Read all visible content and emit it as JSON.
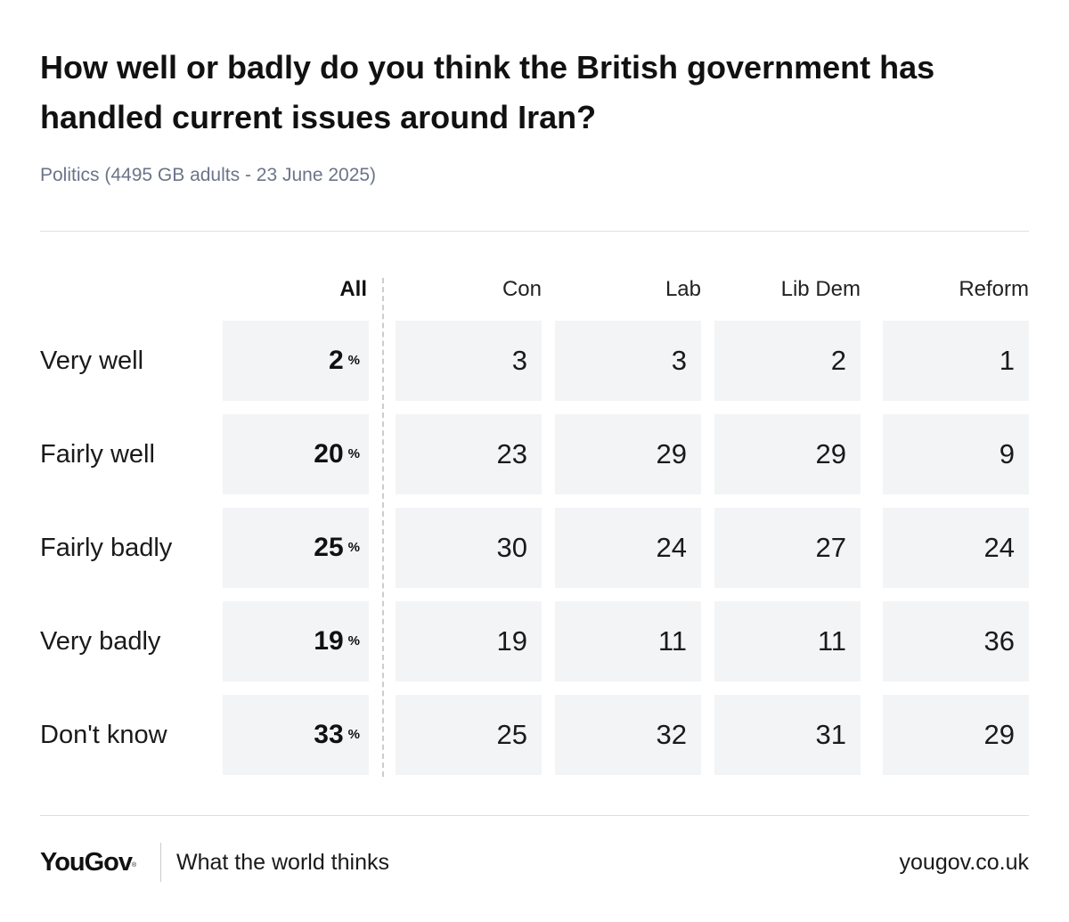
{
  "chart_data": {
    "type": "table",
    "title": "How well or badly do you think the British government has handled current issues around Iran?",
    "subtitle": "Politics (4495 GB adults - 23 June 2025)",
    "columns": [
      "All",
      "Con",
      "Lab",
      "Lib Dem",
      "Reform"
    ],
    "unit_symbol": "%",
    "rows": [
      {
        "label": "Very well",
        "values": [
          2,
          3,
          3,
          2,
          1
        ]
      },
      {
        "label": "Fairly well",
        "values": [
          20,
          23,
          29,
          29,
          9
        ]
      },
      {
        "label": "Fairly badly",
        "values": [
          25,
          30,
          24,
          27,
          24
        ]
      },
      {
        "label": "Very badly",
        "values": [
          19,
          19,
          11,
          11,
          36
        ]
      },
      {
        "label": "Don't know",
        "values": [
          33,
          25,
          32,
          31,
          29
        ]
      }
    ]
  },
  "footer": {
    "brand": "YouGov",
    "tagline": "What the world thinks",
    "site": "yougov.co.uk"
  },
  "colors": {
    "cell_bg": "#f3f4f6",
    "subtitle": "#6b7488",
    "rule": "#dcdfe3"
  }
}
